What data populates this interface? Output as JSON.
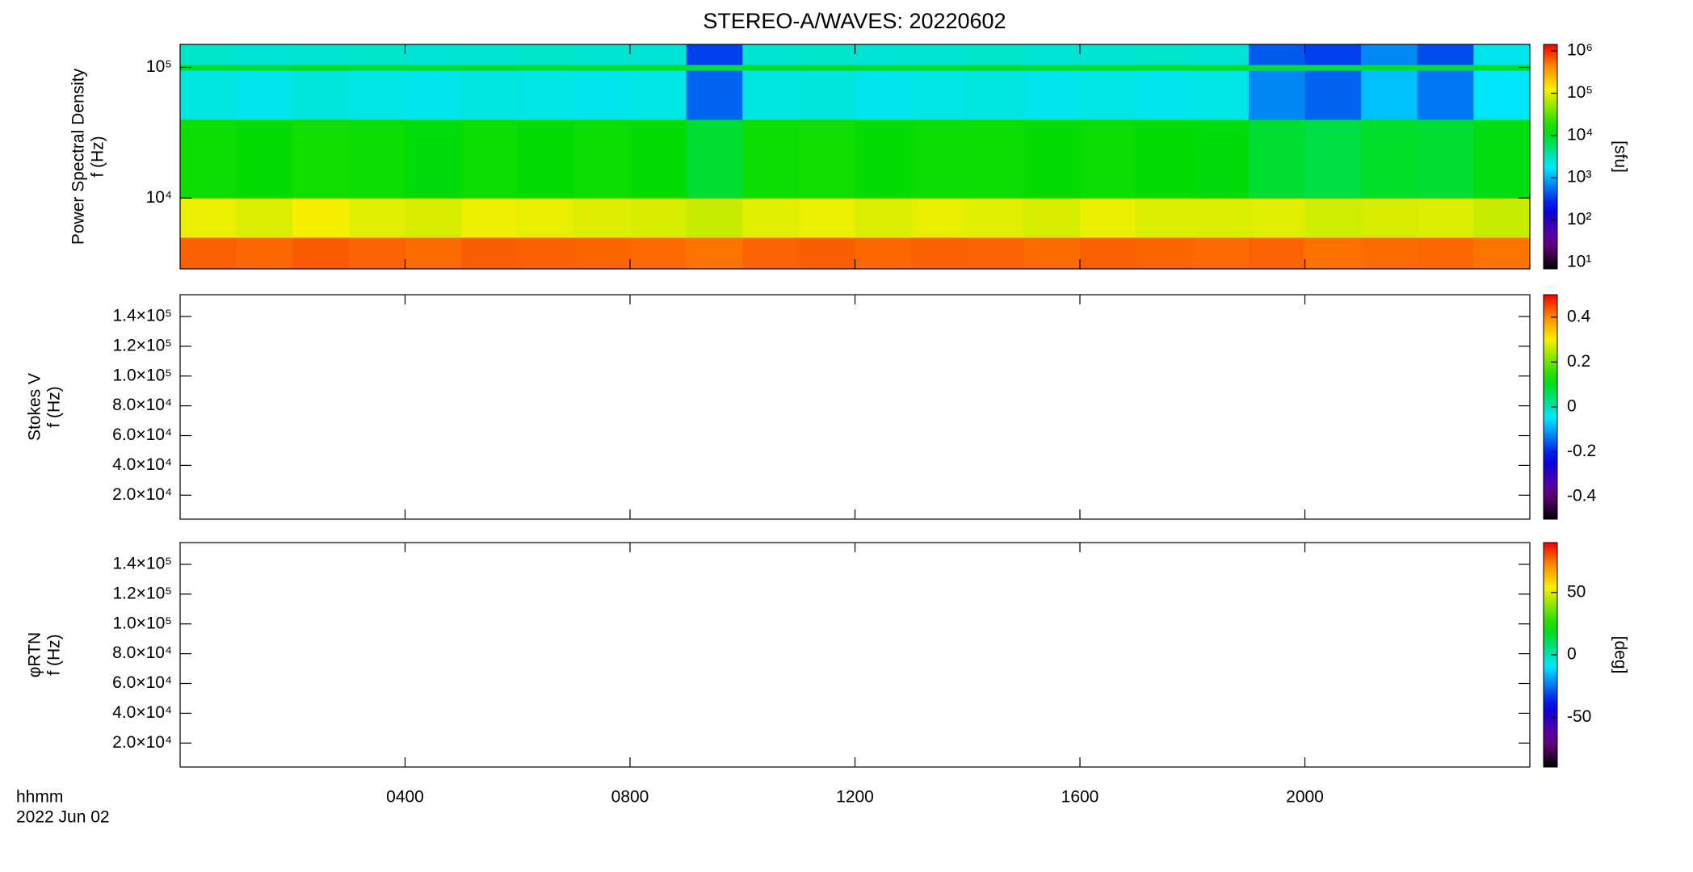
{
  "title": "STEREO-A/WAVES: 20220602",
  "x_axis": {
    "label": "hhmm",
    "date": "2022 Jun 02",
    "xlim": [
      0,
      24
    ],
    "xticks": [
      {
        "value": 4,
        "label": "0400"
      },
      {
        "value": 8,
        "label": "0800"
      },
      {
        "value": 12,
        "label": "1200"
      },
      {
        "value": 16,
        "label": "1600"
      },
      {
        "value": 20,
        "label": "2000"
      }
    ]
  },
  "chart_data": [
    {
      "type": "heatmap",
      "ylabel": [
        "Power Spectral Density",
        "f (Hz)"
      ],
      "log_y": true,
      "ylim": [
        2870,
        150000
      ],
      "yticks": [
        {
          "value": 10000,
          "label": "10⁴"
        },
        {
          "value": 100000,
          "label": "10⁵"
        }
      ],
      "colormap": "rainbow",
      "clabel": "[sfu]",
      "log_c": true,
      "clim": [
        7,
        1430000
      ],
      "cticks": [
        {
          "value": 10,
          "label": "10¹"
        },
        {
          "value": 100,
          "label": "10²"
        },
        {
          "value": 1000,
          "label": "10³"
        },
        {
          "value": 10000,
          "label": "10⁴"
        },
        {
          "value": 100000,
          "label": "10⁵"
        },
        {
          "value": 1000000,
          "label": "10⁶"
        }
      ],
      "x_edges": [
        0,
        1,
        2,
        3,
        4,
        5,
        6,
        7,
        8,
        9,
        10,
        11,
        12,
        13,
        14,
        15,
        16,
        17,
        18,
        19,
        20,
        21,
        22,
        23,
        24
      ],
      "y_edges": [
        2870,
        5000,
        10000,
        40000,
        95000,
        105000,
        150000
      ],
      "z": [
        [
          620000,
          580000,
          650000,
          600000,
          560000,
          640000,
          610000,
          590000,
          570000,
          520000,
          600000,
          630000,
          580000,
          610000,
          600000,
          560000,
          620000,
          590000,
          570000,
          600000,
          540000,
          560000,
          580000,
          520000
        ],
        [
          110000,
          95000,
          120000,
          100000,
          90000,
          115000,
          105000,
          98000,
          92000,
          80000,
          100000,
          110000,
          95000,
          105000,
          100000,
          90000,
          108000,
          97000,
          95000,
          100000,
          85000,
          90000,
          95000,
          80000
        ],
        [
          15000,
          14000,
          16000,
          15000,
          13000,
          15000,
          14000,
          15000,
          14000,
          9000,
          15000,
          16000,
          14000,
          15000,
          15000,
          14000,
          15000,
          14000,
          13000,
          9000,
          8000,
          10000,
          9000,
          12000
        ],
        [
          2200,
          2000,
          2300,
          2100,
          2000,
          2200,
          2100,
          2000,
          2100,
          500,
          2200,
          2300,
          2000,
          2100,
          2200,
          2000,
          2100,
          2000,
          2100,
          700,
          500,
          1200,
          600,
          1800
        ],
        [
          10000,
          9500,
          10500,
          10000,
          9800,
          10200,
          10000,
          9700,
          10100,
          8000,
          10000,
          10300,
          9900,
          10000,
          10200,
          9800,
          10000,
          10100,
          9900,
          8500,
          8000,
          9000,
          8200,
          9600
        ],
        [
          2600,
          2400,
          2500,
          2600,
          2400,
          2500,
          2600,
          2500,
          2400,
          350,
          2500,
          2600,
          2400,
          2500,
          2600,
          2400,
          2500,
          2600,
          2400,
          450,
          350,
          700,
          400,
          2000
        ]
      ]
    },
    {
      "type": "heatmap",
      "ylabel": [
        "Stokes V",
        "f (Hz)"
      ],
      "ylim": [
        3900,
        154600
      ],
      "yticks": [
        {
          "value": 20000,
          "label": "2.0×10⁴"
        },
        {
          "value": 40000,
          "label": "4.0×10⁴"
        },
        {
          "value": 60000,
          "label": "6.0×10⁴"
        },
        {
          "value": 80000,
          "label": "8.0×10⁴"
        },
        {
          "value": 100000,
          "label": "1.0×10⁵"
        },
        {
          "value": 120000,
          "label": "1.2×10⁵"
        },
        {
          "value": 140000,
          "label": "1.4×10⁵"
        }
      ],
      "colormap": "rainbow",
      "clim": [
        -0.5,
        0.5
      ],
      "cticks": [
        -0.4,
        -0.2,
        0.0,
        0.2,
        0.4
      ]
    },
    {
      "type": "heatmap",
      "ylabel": [
        "φRTN",
        "f (Hz)"
      ],
      "ylim": [
        3900,
        154600
      ],
      "yticks": [
        {
          "value": 20000,
          "label": "2.0×10⁴"
        },
        {
          "value": 40000,
          "label": "4.0×10⁴"
        },
        {
          "value": 60000,
          "label": "6.0×10⁴"
        },
        {
          "value": 80000,
          "label": "8.0×10⁴"
        },
        {
          "value": 100000,
          "label": "1.0×10⁵"
        },
        {
          "value": 120000,
          "label": "1.2×10⁵"
        },
        {
          "value": 140000,
          "label": "1.4×10⁵"
        }
      ],
      "colormap": "rainbow",
      "clabel": "[deg]",
      "clim": [
        -90,
        90
      ],
      "cticks": [
        -50,
        0,
        50
      ]
    }
  ]
}
